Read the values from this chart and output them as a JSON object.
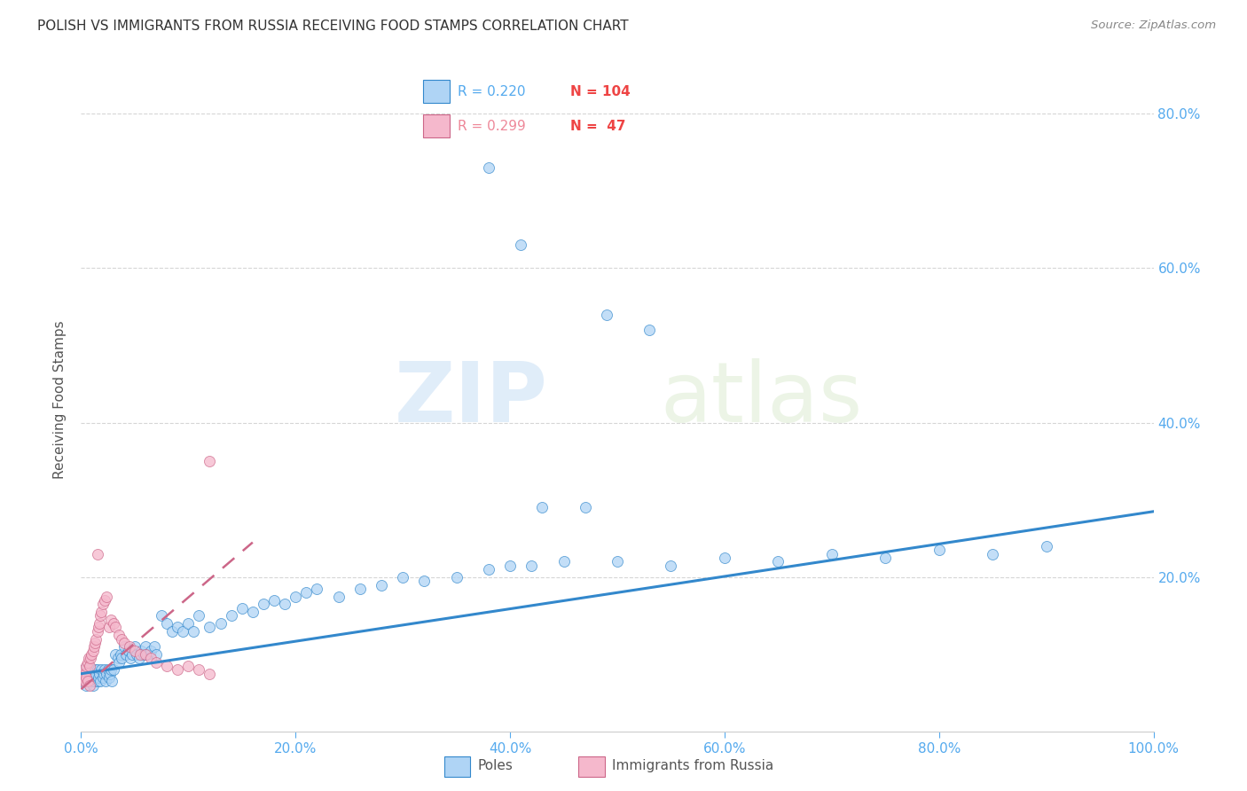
{
  "title": "POLISH VS IMMIGRANTS FROM RUSSIA RECEIVING FOOD STAMPS CORRELATION CHART",
  "source": "Source: ZipAtlas.com",
  "ylabel": "Receiving Food Stamps",
  "blue_color": "#afd4f5",
  "pink_color": "#f5b8cc",
  "blue_line_color": "#3388cc",
  "pink_line_color": "#cc6688",
  "watermark_zip": "ZIP",
  "watermark_atlas": "atlas",
  "background_color": "#ffffff",
  "grid_color": "#cccccc",
  "title_color": "#333333",
  "axis_label_color": "#555555",
  "tick_color": "#55aaee",
  "legend_R_blue": "R = 0.220",
  "legend_N_blue": "N = 104",
  "legend_R_pink": "R = 0.299",
  "legend_N_pink": "N =  47",
  "legend_R_color_blue": "#55aaee",
  "legend_N_color_blue": "#ee4444",
  "legend_R_color_pink": "#ee8899",
  "legend_N_color_pink": "#ee4444",
  "blue_scatter_x": [
    0.002,
    0.003,
    0.004,
    0.004,
    0.005,
    0.005,
    0.006,
    0.006,
    0.007,
    0.007,
    0.008,
    0.008,
    0.009,
    0.009,
    0.01,
    0.01,
    0.011,
    0.011,
    0.012,
    0.012,
    0.013,
    0.013,
    0.014,
    0.015,
    0.015,
    0.016,
    0.017,
    0.018,
    0.019,
    0.02,
    0.021,
    0.022,
    0.023,
    0.024,
    0.025,
    0.026,
    0.027,
    0.028,
    0.029,
    0.03,
    0.032,
    0.034,
    0.035,
    0.037,
    0.038,
    0.04,
    0.042,
    0.044,
    0.046,
    0.048,
    0.05,
    0.052,
    0.054,
    0.056,
    0.058,
    0.06,
    0.062,
    0.065,
    0.068,
    0.07,
    0.075,
    0.08,
    0.085,
    0.09,
    0.095,
    0.1,
    0.105,
    0.11,
    0.12,
    0.13,
    0.14,
    0.15,
    0.16,
    0.17,
    0.18,
    0.19,
    0.2,
    0.21,
    0.22,
    0.24,
    0.26,
    0.28,
    0.3,
    0.32,
    0.35,
    0.38,
    0.4,
    0.42,
    0.45,
    0.5,
    0.55,
    0.6,
    0.65,
    0.7,
    0.75,
    0.8,
    0.85,
    0.9,
    0.43,
    0.47,
    0.38,
    0.41,
    0.49,
    0.53
  ],
  "blue_scatter_y": [
    0.08,
    0.07,
    0.075,
    0.065,
    0.08,
    0.06,
    0.075,
    0.065,
    0.07,
    0.08,
    0.065,
    0.075,
    0.07,
    0.08,
    0.065,
    0.075,
    0.07,
    0.06,
    0.075,
    0.065,
    0.07,
    0.08,
    0.075,
    0.065,
    0.08,
    0.07,
    0.075,
    0.065,
    0.08,
    0.07,
    0.075,
    0.08,
    0.065,
    0.075,
    0.08,
    0.07,
    0.075,
    0.08,
    0.065,
    0.08,
    0.1,
    0.095,
    0.09,
    0.1,
    0.095,
    0.11,
    0.1,
    0.105,
    0.095,
    0.1,
    0.11,
    0.1,
    0.095,
    0.105,
    0.1,
    0.11,
    0.1,
    0.105,
    0.11,
    0.1,
    0.15,
    0.14,
    0.13,
    0.135,
    0.13,
    0.14,
    0.13,
    0.15,
    0.135,
    0.14,
    0.15,
    0.16,
    0.155,
    0.165,
    0.17,
    0.165,
    0.175,
    0.18,
    0.185,
    0.175,
    0.185,
    0.19,
    0.2,
    0.195,
    0.2,
    0.21,
    0.215,
    0.215,
    0.22,
    0.22,
    0.215,
    0.225,
    0.22,
    0.23,
    0.225,
    0.235,
    0.23,
    0.24,
    0.29,
    0.29,
    0.73,
    0.63,
    0.54,
    0.52
  ],
  "pink_scatter_x": [
    0.002,
    0.003,
    0.004,
    0.005,
    0.006,
    0.007,
    0.008,
    0.009,
    0.01,
    0.011,
    0.012,
    0.013,
    0.014,
    0.015,
    0.016,
    0.017,
    0.018,
    0.019,
    0.02,
    0.022,
    0.024,
    0.026,
    0.028,
    0.03,
    0.032,
    0.035,
    0.038,
    0.04,
    0.045,
    0.05,
    0.055,
    0.06,
    0.065,
    0.07,
    0.08,
    0.09,
    0.1,
    0.11,
    0.12,
    0.002,
    0.003,
    0.004,
    0.005,
    0.006,
    0.008,
    0.015,
    0.12
  ],
  "pink_scatter_y": [
    0.075,
    0.08,
    0.075,
    0.085,
    0.09,
    0.095,
    0.085,
    0.095,
    0.1,
    0.105,
    0.11,
    0.115,
    0.12,
    0.13,
    0.135,
    0.14,
    0.15,
    0.155,
    0.165,
    0.17,
    0.175,
    0.135,
    0.145,
    0.14,
    0.135,
    0.125,
    0.12,
    0.115,
    0.11,
    0.105,
    0.1,
    0.1,
    0.095,
    0.09,
    0.085,
    0.08,
    0.085,
    0.08,
    0.075,
    0.065,
    0.07,
    0.065,
    0.07,
    0.065,
    0.06,
    0.23,
    0.35
  ],
  "xlim": [
    0.0,
    1.0
  ],
  "ylim": [
    0.0,
    0.86
  ],
  "xticks": [
    0.0,
    0.2,
    0.4,
    0.6,
    0.8,
    1.0
  ],
  "xtick_labels": [
    "0.0%",
    "20.0%",
    "40.0%",
    "60.0%",
    "80.0%",
    "100.0%"
  ],
  "yticks_right": [
    0.2,
    0.4,
    0.6,
    0.8
  ],
  "ytick_labels_right": [
    "20.0%",
    "40.0%",
    "60.0%",
    "80.0%"
  ],
  "grid_yticks": [
    0.2,
    0.4,
    0.6,
    0.8
  ],
  "blue_trend_x": [
    0.0,
    1.0
  ],
  "blue_trend_y_start": 0.075,
  "blue_trend_y_end": 0.285,
  "pink_trend_x": [
    0.0,
    0.16
  ],
  "pink_trend_y_start": 0.055,
  "pink_trend_y_end": 0.245
}
